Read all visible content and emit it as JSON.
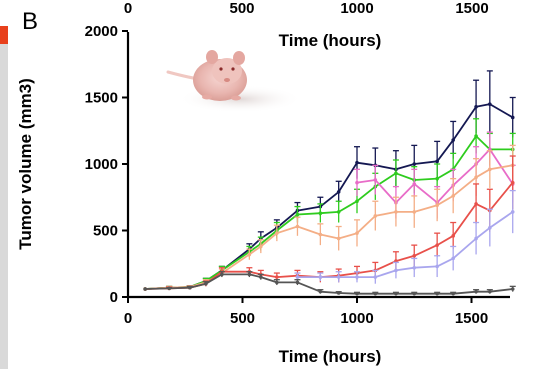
{
  "panel_label": "B",
  "colors": {
    "side_strip": "#d9d9d9",
    "side_strip_accent": "#e8401c"
  },
  "top_strip": {
    "tick_labels": [
      "0",
      "500",
      "1000",
      "1500"
    ],
    "xlabel": "Time (hours)"
  },
  "inset_image": {
    "icon": "nude-mouse-photo"
  },
  "chart_data": {
    "type": "line",
    "title": "",
    "xlabel": "Time (hours)",
    "ylabel": "Tumor volume (mm3)",
    "xlim": [
      0,
      1720
    ],
    "ylim": [
      0,
      2000
    ],
    "xticks": [
      0,
      500,
      1000,
      1500
    ],
    "yticks": [
      0,
      500,
      1000,
      1500,
      2000
    ],
    "grid": false,
    "legend": "none",
    "series": [
      {
        "color": "#141852",
        "x": [
          75,
          180,
          270,
          340,
          410,
          530,
          580,
          650,
          740,
          840,
          920,
          1000,
          1080,
          1170,
          1250,
          1350,
          1420,
          1520,
          1580,
          1680
        ],
        "y": [
          60,
          70,
          75,
          120,
          200,
          360,
          440,
          520,
          650,
          680,
          790,
          1010,
          990,
          960,
          1000,
          1020,
          1180,
          1430,
          1450,
          1350
        ],
        "err": [
          0,
          10,
          10,
          20,
          30,
          40,
          50,
          60,
          60,
          70,
          80,
          120,
          130,
          140,
          140,
          150,
          140,
          200,
          250,
          150
        ]
      },
      {
        "color": "#2ecc1e",
        "x": [
          75,
          180,
          270,
          340,
          410,
          530,
          580,
          650,
          740,
          840,
          920,
          1000,
          1080,
          1170,
          1250,
          1350,
          1420,
          1520,
          1580,
          1680
        ],
        "y": [
          60,
          70,
          75,
          120,
          200,
          340,
          400,
          500,
          620,
          630,
          640,
          720,
          830,
          930,
          880,
          890,
          960,
          1210,
          1110,
          1110
        ],
        "err": [
          0,
          10,
          10,
          20,
          30,
          40,
          50,
          60,
          60,
          70,
          80,
          90,
          100,
          100,
          100,
          110,
          120,
          130,
          120,
          120
        ]
      },
      {
        "color": "#e86cc8",
        "x": [
          1000,
          1080,
          1170,
          1250,
          1350,
          1420,
          1520,
          1580,
          1680
        ],
        "y": [
          860,
          880,
          710,
          850,
          710,
          840,
          1000,
          1110,
          850
        ],
        "err": [
          100,
          110,
          120,
          110,
          120,
          120,
          130,
          130,
          140
        ]
      },
      {
        "color": "#f4ae86",
        "x": [
          75,
          180,
          270,
          340,
          410,
          530,
          580,
          650,
          740,
          840,
          920,
          1000,
          1080,
          1170,
          1250,
          1350,
          1420,
          1520,
          1580,
          1680
        ],
        "y": [
          60,
          70,
          75,
          110,
          180,
          320,
          380,
          480,
          530,
          470,
          440,
          480,
          610,
          640,
          640,
          690,
          760,
          900,
          960,
          990
        ],
        "err": [
          0,
          10,
          10,
          20,
          30,
          40,
          50,
          60,
          70,
          80,
          90,
          100,
          110,
          110,
          120,
          120,
          130,
          140,
          140,
          150
        ]
      },
      {
        "color": "#e8504a",
        "x": [
          75,
          180,
          270,
          340,
          410,
          530,
          580,
          650,
          740,
          840,
          920,
          1000,
          1080,
          1170,
          1250,
          1350,
          1420,
          1520,
          1580,
          1680
        ],
        "y": [
          60,
          65,
          70,
          100,
          190,
          190,
          170,
          150,
          160,
          150,
          160,
          180,
          200,
          270,
          310,
          390,
          460,
          700,
          650,
          860
        ],
        "err": [
          0,
          10,
          10,
          20,
          30,
          30,
          30,
          30,
          40,
          40,
          50,
          50,
          60,
          70,
          80,
          90,
          100,
          150,
          160,
          200
        ]
      },
      {
        "color": "#a9a6ee",
        "x": [
          740,
          840,
          920,
          1000,
          1080,
          1170,
          1250,
          1350,
          1420,
          1520,
          1580,
          1680
        ],
        "y": [
          150,
          150,
          150,
          150,
          150,
          200,
          220,
          230,
          290,
          440,
          520,
          640
        ],
        "err": [
          30,
          30,
          40,
          40,
          50,
          60,
          70,
          80,
          90,
          120,
          140,
          160
        ]
      },
      {
        "color": "#555555",
        "x": [
          75,
          180,
          270,
          340,
          410,
          530,
          580,
          650,
          740,
          840,
          920,
          1000,
          1080,
          1170,
          1250,
          1350,
          1420,
          1520,
          1580,
          1680
        ],
        "y": [
          60,
          65,
          70,
          100,
          170,
          170,
          150,
          110,
          110,
          40,
          30,
          25,
          25,
          25,
          25,
          25,
          25,
          40,
          40,
          60
        ],
        "err": [
          0,
          5,
          10,
          15,
          20,
          20,
          20,
          20,
          20,
          15,
          10,
          10,
          10,
          10,
          10,
          10,
          10,
          15,
          15,
          20
        ]
      }
    ]
  }
}
